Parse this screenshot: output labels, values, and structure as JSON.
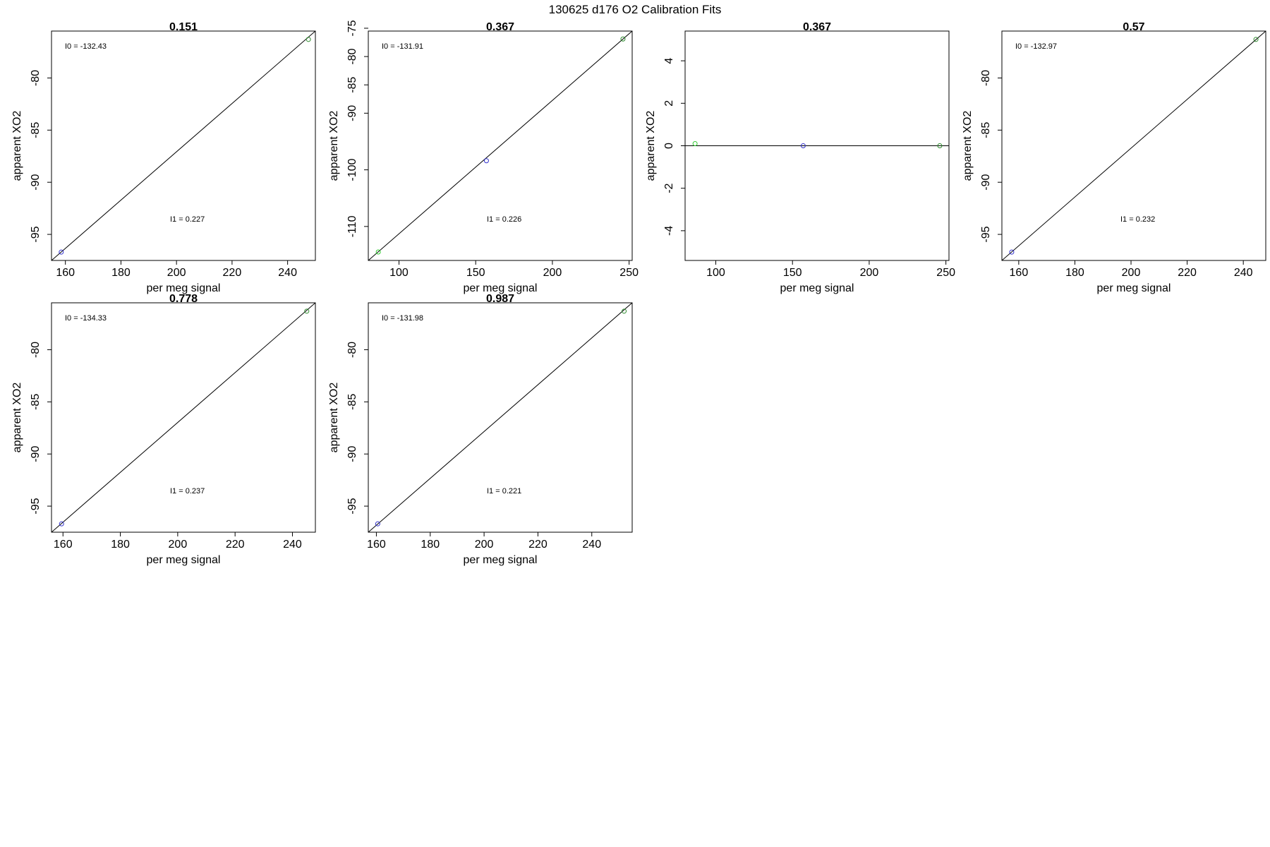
{
  "figure": {
    "title": "130625   d176   O2 Calibration Fits"
  },
  "chart_data": [
    {
      "type": "scatter",
      "title": "0.151",
      "xlabel": "per meg signal",
      "ylabel": "apparent XO2",
      "xlim": [
        155,
        250
      ],
      "ylim": [
        -97.5,
        -75.5
      ],
      "xticks": [
        160,
        180,
        200,
        220,
        240
      ],
      "yticks": [
        -95,
        -90,
        -85,
        -80
      ],
      "points": [
        {
          "x": 158.5,
          "y": -96.7,
          "color": "#3333cc"
        },
        {
          "x": 247.5,
          "y": -76.3,
          "color": "#2e8b2e"
        }
      ],
      "fit_line": {
        "x": [
          155,
          250
        ],
        "y": [
          -97.5,
          -75.5
        ]
      },
      "annotations": {
        "i0": "I0 =  -132.43",
        "i1": "I1 =  0.227"
      }
    },
    {
      "type": "scatter",
      "title": "0.367",
      "xlabel": "per meg signal",
      "ylabel": "apparent XO2",
      "xlim": [
        80,
        252
      ],
      "ylim": [
        -116,
        -75.5
      ],
      "xticks": [
        100,
        150,
        200,
        250
      ],
      "yticks": [
        -110,
        -100,
        -90,
        -85,
        -80,
        -75
      ],
      "points": [
        {
          "x": 86.5,
          "y": -114.5,
          "color": "#33cc33"
        },
        {
          "x": 157,
          "y": -98.4,
          "color": "#3333cc"
        },
        {
          "x": 246,
          "y": -76.9,
          "color": "#2e8b2e"
        }
      ],
      "fit_line": {
        "x": [
          80,
          252
        ],
        "y": [
          -116,
          -75.5
        ]
      },
      "annotations": {
        "i0": "I0 =  -131.91",
        "i1": "I1 =  0.226"
      }
    },
    {
      "type": "scatter",
      "title": "0.367",
      "xlabel": "per meg signal",
      "ylabel": "apparent XO2",
      "xlim": [
        80,
        252
      ],
      "ylim": [
        -5.4,
        5.4
      ],
      "xticks": [
        100,
        150,
        200,
        250
      ],
      "yticks": [
        -4,
        -2,
        0,
        2,
        4
      ],
      "points": [
        {
          "x": 86.5,
          "y": 0.1,
          "color": "#33cc33"
        },
        {
          "x": 157,
          "y": 0.0,
          "color": "#3333cc"
        },
        {
          "x": 246,
          "y": 0.0,
          "color": "#2e8b2e"
        }
      ],
      "fit_line": {
        "x": [
          80,
          252
        ],
        "y": [
          0,
          0
        ]
      },
      "annotations": {}
    },
    {
      "type": "scatter",
      "title": "0.57",
      "xlabel": "per meg signal",
      "ylabel": "apparent XO2",
      "xlim": [
        154,
        248
      ],
      "ylim": [
        -97.5,
        -75.5
      ],
      "xticks": [
        160,
        180,
        200,
        220,
        240
      ],
      "yticks": [
        -95,
        -90,
        -85,
        -80
      ],
      "points": [
        {
          "x": 157.5,
          "y": -96.7,
          "color": "#3333cc"
        },
        {
          "x": 244.5,
          "y": -76.3,
          "color": "#2e8b2e"
        }
      ],
      "fit_line": {
        "x": [
          154,
          248
        ],
        "y": [
          -97.5,
          -75.5
        ]
      },
      "annotations": {
        "i0": "I0 =  -132.97",
        "i1": "I1 =  0.232"
      }
    },
    {
      "type": "scatter",
      "title": "0.778",
      "xlabel": "per meg signal",
      "ylabel": "apparent XO2",
      "xlim": [
        156,
        248
      ],
      "ylim": [
        -97.5,
        -75.5
      ],
      "xticks": [
        160,
        180,
        200,
        220,
        240
      ],
      "yticks": [
        -95,
        -90,
        -85,
        -80
      ],
      "points": [
        {
          "x": 159.5,
          "y": -96.7,
          "color": "#3333cc"
        },
        {
          "x": 245,
          "y": -76.3,
          "color": "#2e8b2e"
        }
      ],
      "fit_line": {
        "x": [
          156,
          248
        ],
        "y": [
          -97.5,
          -75.5
        ]
      },
      "annotations": {
        "i0": "I0 =  -134.33",
        "i1": "I1 =  0.237"
      }
    },
    {
      "type": "scatter",
      "title": "0.987",
      "xlabel": "per meg signal",
      "ylabel": "apparent XO2",
      "xlim": [
        157,
        255
      ],
      "ylim": [
        -97.5,
        -75.5
      ],
      "xticks": [
        160,
        180,
        200,
        220,
        240
      ],
      "yticks": [
        -95,
        -90,
        -85,
        -80
      ],
      "points": [
        {
          "x": 160.5,
          "y": -96.7,
          "color": "#3333cc"
        },
        {
          "x": 252,
          "y": -76.3,
          "color": "#2e8b2e"
        }
      ],
      "fit_line": {
        "x": [
          157,
          255
        ],
        "y": [
          -97.5,
          -75.5
        ]
      },
      "annotations": {
        "i0": "I0 =  -131.98",
        "i1": "I1 =  0.221"
      }
    }
  ]
}
